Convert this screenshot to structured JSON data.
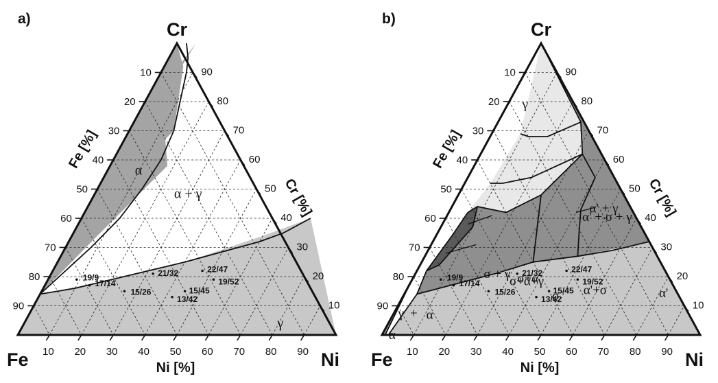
{
  "panels": [
    {
      "id": "a",
      "panel_label": "a)",
      "apex_top": "Cr",
      "apex_left": "Fe",
      "apex_right": "Ni",
      "axis_left_label": "Fe [%]",
      "axis_right_label": "Cr [%]",
      "axis_bottom_label": "Ni [%]",
      "left_ticks": [
        "10",
        "20",
        "30",
        "40",
        "50",
        "60",
        "70",
        "80",
        "90"
      ],
      "right_ticks": [
        "90",
        "80",
        "70",
        "60",
        "50",
        "40",
        "30",
        "20",
        "10"
      ],
      "bottom_ticks": [
        "10",
        "20",
        "30",
        "40",
        "50",
        "60",
        "70",
        "80",
        "90"
      ],
      "phase_labels": [
        "α",
        "α + γ",
        "γ"
      ],
      "alloys": [
        "19/9",
        "17/14",
        "15/26",
        "21/32",
        "22/47",
        "19/52",
        "15/45",
        "13/42"
      ]
    },
    {
      "id": "b",
      "panel_label": "b)",
      "apex_top": "Cr",
      "apex_left": "Fe",
      "apex_right": "Ni",
      "axis_left_label": "Fe [%]",
      "axis_right_label": "Cr [%]",
      "axis_bottom_label": "Ni [%]",
      "left_ticks": [
        "10",
        "20",
        "30",
        "40",
        "50",
        "60",
        "70",
        "80",
        "90"
      ],
      "right_ticks": [
        "90",
        "80",
        "70",
        "60",
        "50",
        "40",
        "30",
        "20",
        "10"
      ],
      "bottom_ticks": [
        "10",
        "20",
        "30",
        "40",
        "50",
        "60",
        "70",
        "80",
        "90"
      ],
      "phase_labels": [
        "α'",
        "α'+σ",
        "σ",
        "α' + γ",
        "α' + σ + γ",
        "σ+α",
        "σ+α+γ",
        "σ + γ",
        "α",
        "+",
        "γ",
        "α",
        "γ"
      ],
      "alloys": [
        "19/9",
        "17/14",
        "15/26",
        "21/32",
        "22/47",
        "19/52",
        "15/45",
        "13/42"
      ]
    }
  ],
  "colors": {
    "gamma": "#c8c8c8",
    "alpha": "#a4a4a4",
    "sigma_gamma": "#8f8f8f",
    "sigma_alpha": "#5a5a5a",
    "alpha_prime": "#e8e8e8",
    "white": "#ffffff"
  }
}
